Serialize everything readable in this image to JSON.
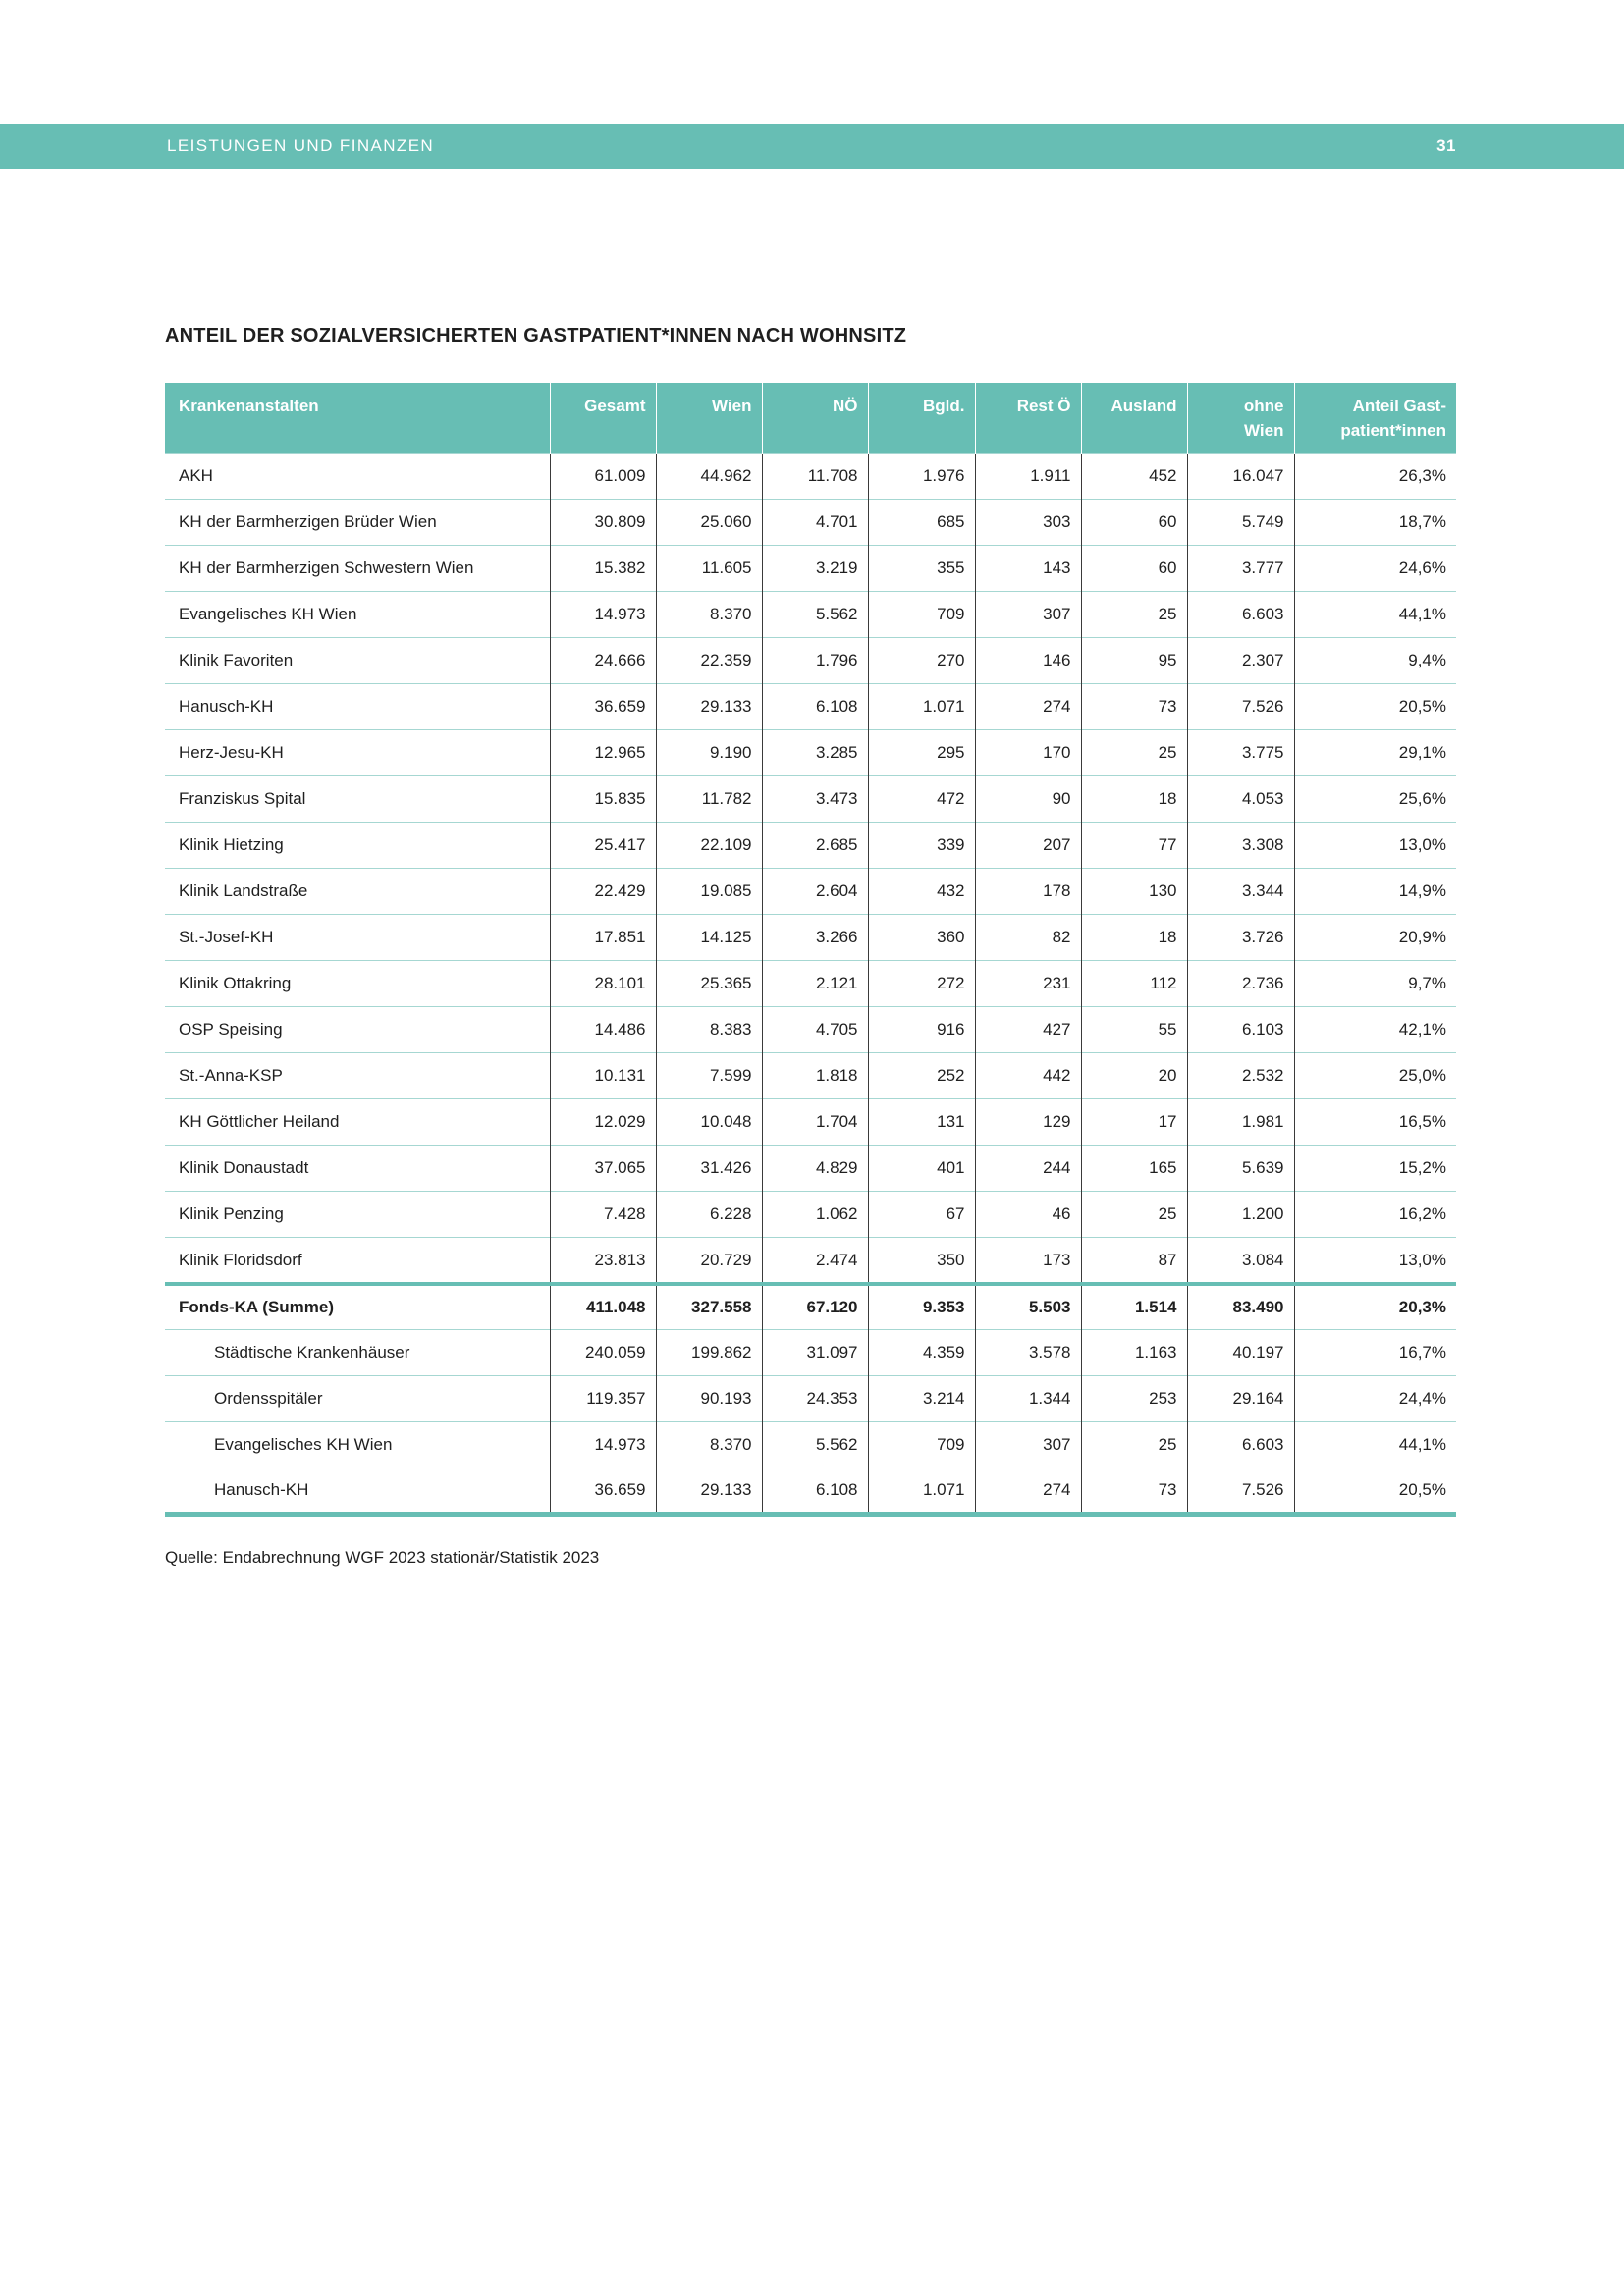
{
  "colors": {
    "teal": "#67beb4",
    "row_separator": "#a6d7d2",
    "column_line": "#3a3a3a",
    "text": "#1f1f1f"
  },
  "header_bar": {
    "title": "LEISTUNGEN UND FINANZEN",
    "page_number": "31"
  },
  "section_title": "ANTEIL DER SOZIALVERSICHERTEN GASTPATIENT*INNEN NACH WOHNSITZ",
  "source_note": "Quelle: Endabrechnung WGF 2023 stationär/Statistik 2023",
  "table": {
    "columns": [
      "Krankenanstalten",
      "Gesamt",
      "Wien",
      "NÖ",
      "Bgld.",
      "Rest Ö",
      "Ausland",
      "ohne\nWien",
      "Anteil Gast-\npatient*innen"
    ],
    "rows": [
      {
        "name": "AKH",
        "values": [
          "61.009",
          "44.962",
          "11.708",
          "1.976",
          "1.911",
          "452",
          "16.047",
          "26,3%"
        ],
        "style": "normal"
      },
      {
        "name": "KH der Barmherzigen Brüder Wien",
        "values": [
          "30.809",
          "25.060",
          "4.701",
          "685",
          "303",
          "60",
          "5.749",
          "18,7%"
        ],
        "style": "normal"
      },
      {
        "name": "KH der Barmherzigen Schwestern Wien",
        "values": [
          "15.382",
          "11.605",
          "3.219",
          "355",
          "143",
          "60",
          "3.777",
          "24,6%"
        ],
        "style": "normal"
      },
      {
        "name": "Evangelisches KH Wien",
        "values": [
          "14.973",
          "8.370",
          "5.562",
          "709",
          "307",
          "25",
          "6.603",
          "44,1%"
        ],
        "style": "normal"
      },
      {
        "name": "Klinik Favoriten",
        "values": [
          "24.666",
          "22.359",
          "1.796",
          "270",
          "146",
          "95",
          "2.307",
          "9,4%"
        ],
        "style": "normal"
      },
      {
        "name": "Hanusch-KH",
        "values": [
          "36.659",
          "29.133",
          "6.108",
          "1.071",
          "274",
          "73",
          "7.526",
          "20,5%"
        ],
        "style": "normal"
      },
      {
        "name": "Herz-Jesu-KH",
        "values": [
          "12.965",
          "9.190",
          "3.285",
          "295",
          "170",
          "25",
          "3.775",
          "29,1%"
        ],
        "style": "normal"
      },
      {
        "name": "Franziskus Spital",
        "values": [
          "15.835",
          "11.782",
          "3.473",
          "472",
          "90",
          "18",
          "4.053",
          "25,6%"
        ],
        "style": "normal"
      },
      {
        "name": "Klinik Hietzing",
        "values": [
          "25.417",
          "22.109",
          "2.685",
          "339",
          "207",
          "77",
          "3.308",
          "13,0%"
        ],
        "style": "normal"
      },
      {
        "name": "Klinik Landstraße",
        "values": [
          "22.429",
          "19.085",
          "2.604",
          "432",
          "178",
          "130",
          "3.344",
          "14,9%"
        ],
        "style": "normal"
      },
      {
        "name": "St.-Josef-KH",
        "values": [
          "17.851",
          "14.125",
          "3.266",
          "360",
          "82",
          "18",
          "3.726",
          "20,9%"
        ],
        "style": "normal"
      },
      {
        "name": "Klinik Ottakring",
        "values": [
          "28.101",
          "25.365",
          "2.121",
          "272",
          "231",
          "112",
          "2.736",
          "9,7%"
        ],
        "style": "normal"
      },
      {
        "name": "OSP Speising",
        "values": [
          "14.486",
          "8.383",
          "4.705",
          "916",
          "427",
          "55",
          "6.103",
          "42,1%"
        ],
        "style": "normal"
      },
      {
        "name": "St.-Anna-KSP",
        "values": [
          "10.131",
          "7.599",
          "1.818",
          "252",
          "442",
          "20",
          "2.532",
          "25,0%"
        ],
        "style": "normal"
      },
      {
        "name": "KH Göttlicher Heiland",
        "values": [
          "12.029",
          "10.048",
          "1.704",
          "131",
          "129",
          "17",
          "1.981",
          "16,5%"
        ],
        "style": "normal"
      },
      {
        "name": "Klinik Donaustadt",
        "values": [
          "37.065",
          "31.426",
          "4.829",
          "401",
          "244",
          "165",
          "5.639",
          "15,2%"
        ],
        "style": "normal"
      },
      {
        "name": "Klinik Penzing",
        "values": [
          "7.428",
          "6.228",
          "1.062",
          "67",
          "46",
          "25",
          "1.200",
          "16,2%"
        ],
        "style": "normal"
      },
      {
        "name": "Klinik Floridsdorf",
        "values": [
          "23.813",
          "20.729",
          "2.474",
          "350",
          "173",
          "87",
          "3.084",
          "13,0%"
        ],
        "style": "normal"
      },
      {
        "name": "Fonds-KA (Summe)",
        "values": [
          "411.048",
          "327.558",
          "67.120",
          "9.353",
          "5.503",
          "1.514",
          "83.490",
          "20,3%"
        ],
        "style": "total"
      },
      {
        "name": "Städtische Krankenhäuser",
        "values": [
          "240.059",
          "199.862",
          "31.097",
          "4.359",
          "3.578",
          "1.163",
          "40.197",
          "16,7%"
        ],
        "style": "indent"
      },
      {
        "name": "Ordensspitäler",
        "values": [
          "119.357",
          "90.193",
          "24.353",
          "3.214",
          "1.344",
          "253",
          "29.164",
          "24,4%"
        ],
        "style": "indent"
      },
      {
        "name": "Evangelisches KH Wien",
        "values": [
          "14.973",
          "8.370",
          "5.562",
          "709",
          "307",
          "25",
          "6.603",
          "44,1%"
        ],
        "style": "indent"
      },
      {
        "name": "Hanusch-KH",
        "values": [
          "36.659",
          "29.133",
          "6.108",
          "1.071",
          "274",
          "73",
          "7.526",
          "20,5%"
        ],
        "style": "indent"
      }
    ]
  }
}
